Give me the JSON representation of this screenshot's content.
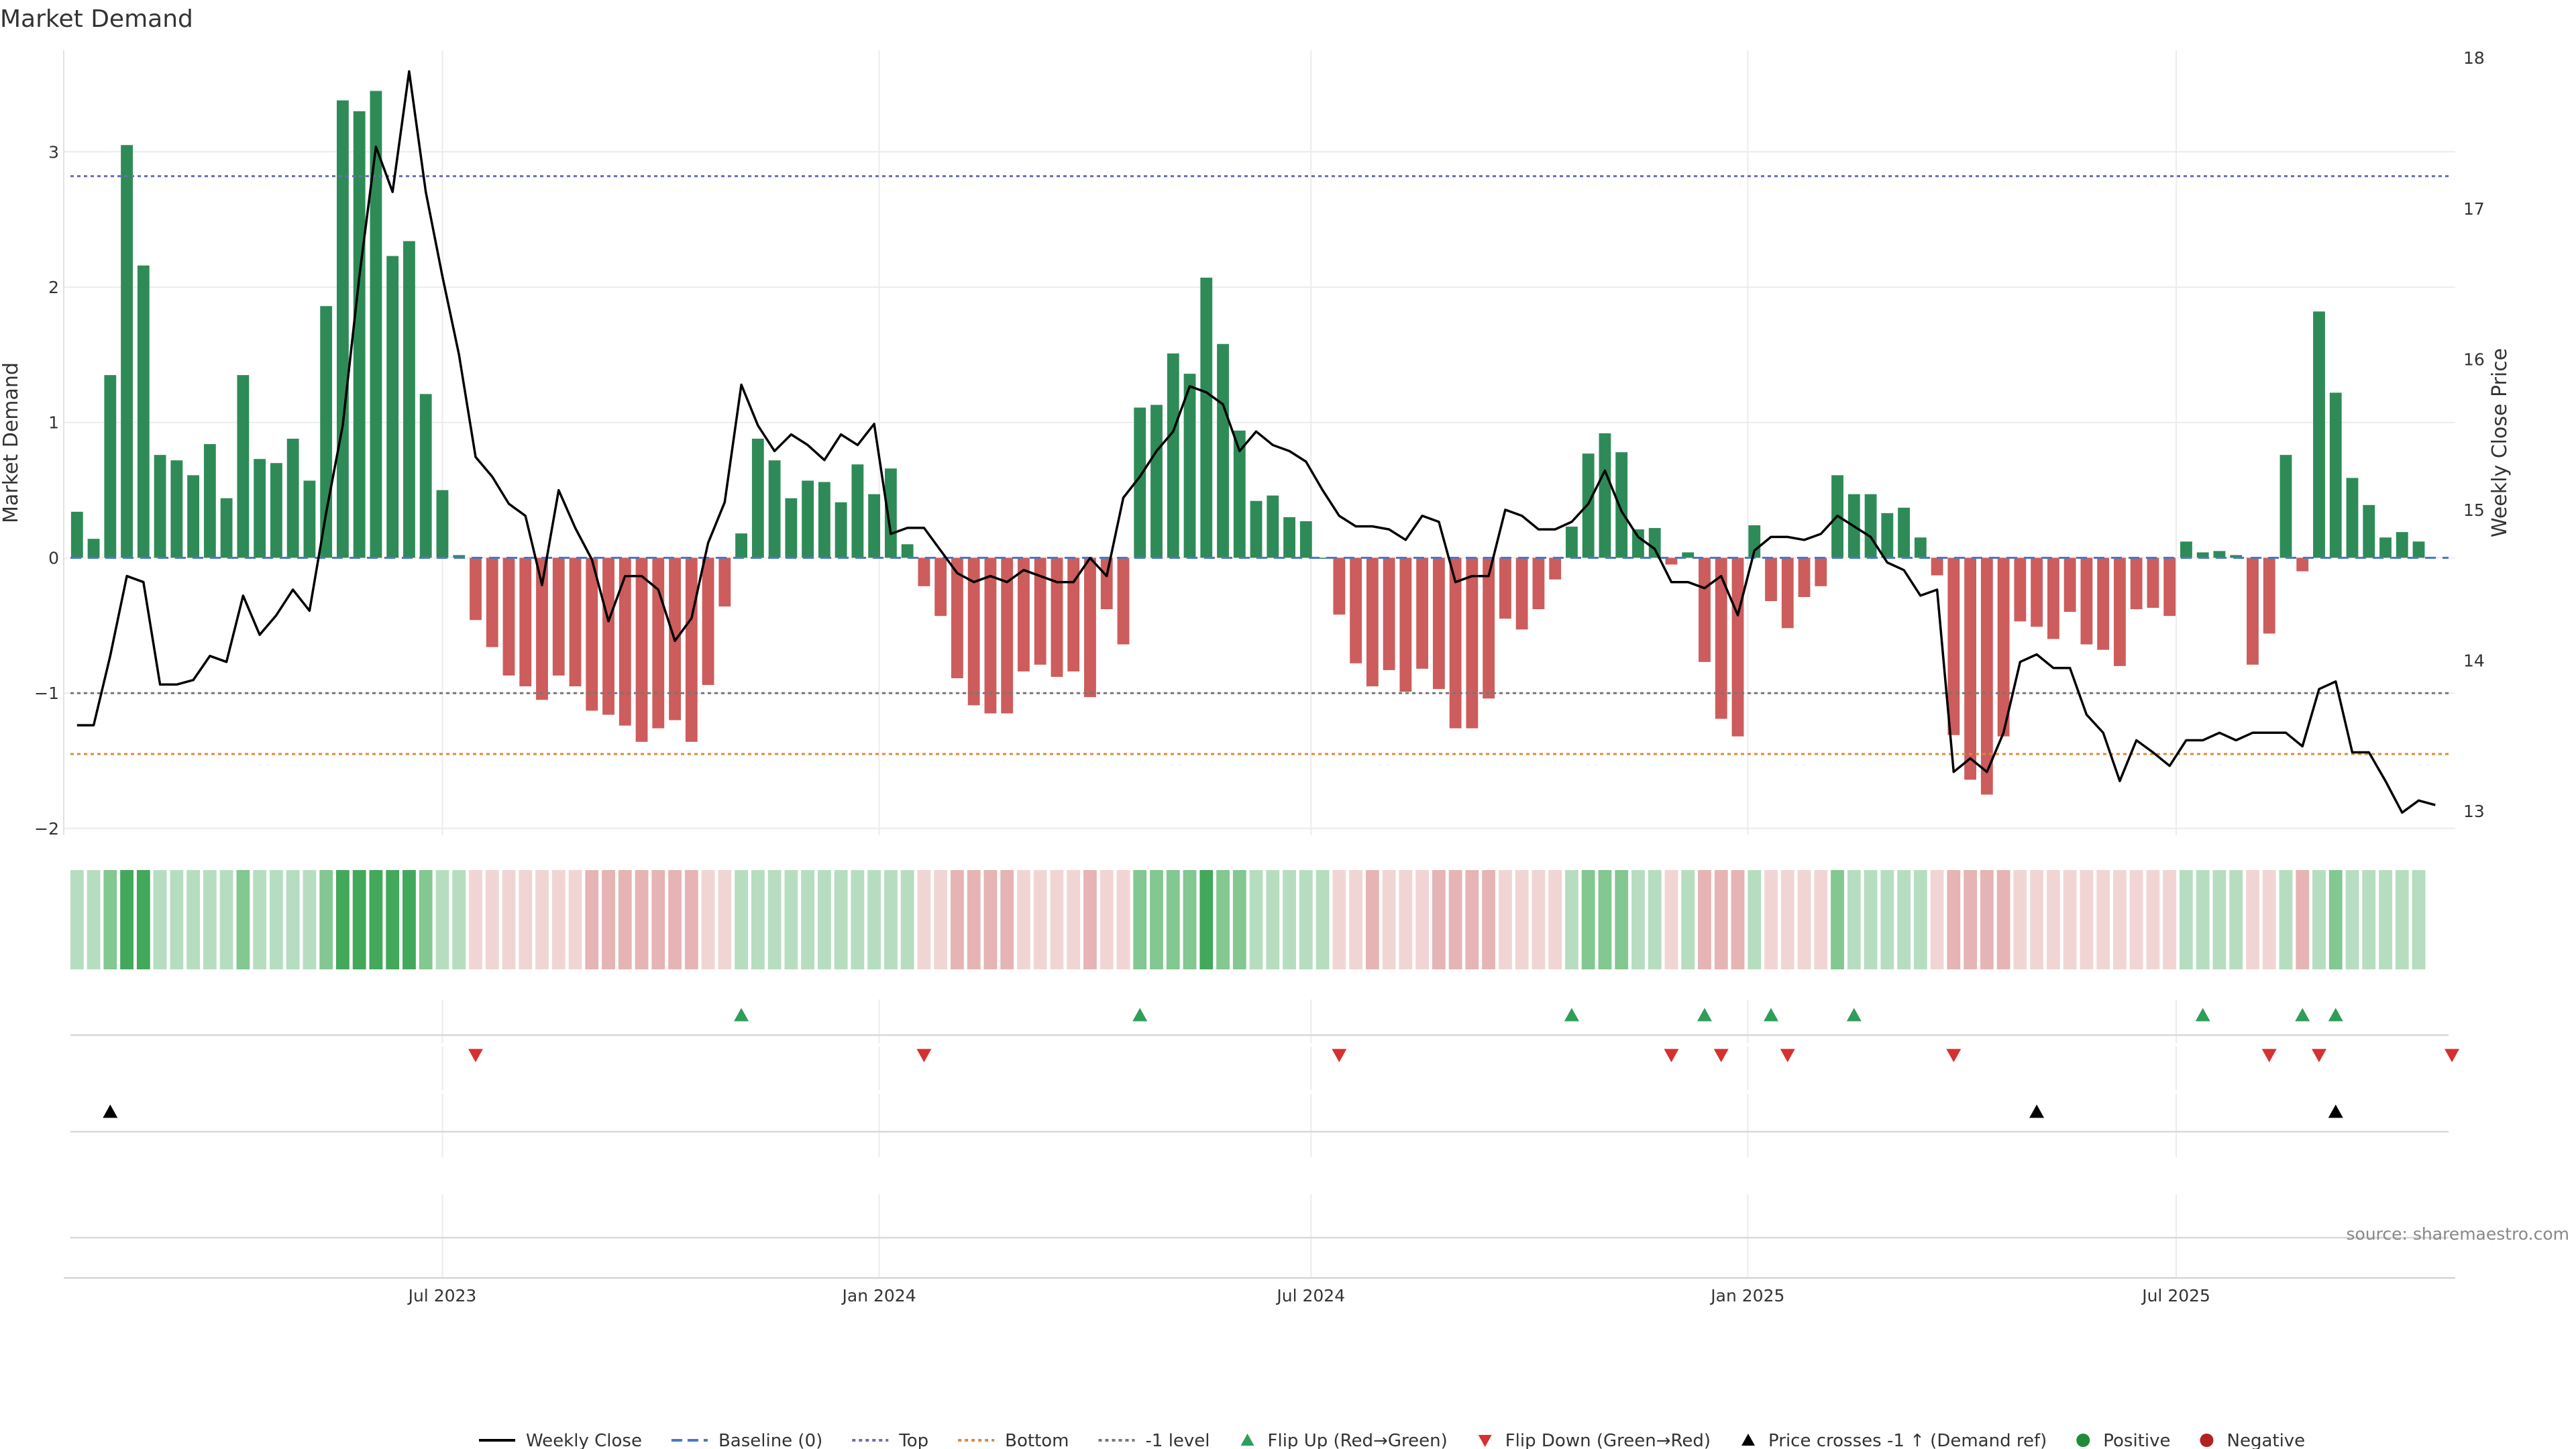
{
  "chart_data": {
    "type": "bar",
    "title": "Market Demand",
    "ylabel": "Market Demand",
    "y2label": "Weekly Close Price",
    "ylim": [
      -2.05,
      3.75
    ],
    "y2lim": [
      12.84,
      18.05
    ],
    "yticks": [
      -2,
      -1,
      0,
      1,
      2,
      3
    ],
    "ytick_labels": [
      "−2",
      "−1",
      "0",
      "1",
      "2",
      "3"
    ],
    "y2ticks": [
      13,
      14,
      15,
      16,
      17,
      18
    ],
    "xlim": [
      -0.8,
      143.2
    ],
    "xticks": [
      {
        "index": 22,
        "label": "Jul 2023"
      },
      {
        "index": 48.3,
        "label": "Jan 2024"
      },
      {
        "index": 74.3,
        "label": "Jul 2024"
      },
      {
        "index": 100.6,
        "label": "Jan 2025"
      },
      {
        "index": 126.4,
        "label": "Jul 2025"
      }
    ],
    "reference_lines": [
      {
        "name": "Baseline (0)",
        "value": 0,
        "color": "#4a78c4",
        "style": "dashed"
      },
      {
        "name": "Top",
        "value": 2.82,
        "color": "#6b6bbd",
        "style": "dotted"
      },
      {
        "name": "Bottom",
        "value": -1.45,
        "color": "#dd8a3a",
        "style": "dotted"
      },
      {
        "name": "-1 level",
        "value": -1,
        "color": "#777777",
        "style": "dotted"
      }
    ],
    "demand": [
      0.34,
      0.14,
      1.35,
      3.05,
      2.16,
      0.76,
      0.72,
      0.61,
      0.84,
      0.44,
      1.35,
      0.73,
      0.7,
      0.88,
      0.57,
      1.86,
      3.38,
      3.3,
      3.45,
      2.23,
      2.34,
      1.21,
      0.5,
      0.02,
      -0.46,
      -0.66,
      -0.87,
      -0.95,
      -1.05,
      -0.87,
      -0.95,
      -1.13,
      -1.16,
      -1.24,
      -1.36,
      -1.26,
      -1.2,
      -1.36,
      -0.94,
      -0.36,
      0.18,
      0.88,
      0.72,
      0.44,
      0.57,
      0.56,
      0.41,
      0.69,
      0.47,
      0.66,
      0.1,
      -0.21,
      -0.43,
      -0.89,
      -1.09,
      -1.15,
      -1.15,
      -0.84,
      -0.79,
      -0.88,
      -0.84,
      -1.03,
      -0.38,
      -0.64,
      1.11,
      1.13,
      1.51,
      1.36,
      2.07,
      1.58,
      0.94,
      0.42,
      0.46,
      0.3,
      0.27,
      0.0,
      -0.42,
      -0.78,
      -0.95,
      -0.83,
      -0.99,
      -0.82,
      -0.97,
      -1.26,
      -1.26,
      -1.04,
      -0.45,
      -0.53,
      -0.38,
      -0.16,
      0.23,
      0.77,
      0.92,
      0.78,
      0.21,
      0.22,
      -0.05,
      0.04,
      -0.77,
      -1.19,
      -1.32,
      0.24,
      -0.32,
      -0.52,
      -0.29,
      -0.21,
      0.61,
      0.47,
      0.47,
      0.33,
      0.37,
      0.15,
      -0.13,
      -1.31,
      -1.64,
      -1.75,
      -1.32,
      -0.47,
      -0.51,
      -0.6,
      -0.4,
      -0.64,
      -0.68,
      -0.8,
      -0.38,
      -0.37,
      -0.43,
      0.12,
      0.04,
      0.05,
      0.02,
      -0.79,
      -0.56,
      0.76,
      -0.1,
      1.82,
      1.22,
      0.59,
      0.39,
      0.15,
      0.19,
      0.12
    ],
    "price": [
      13.57,
      13.57,
      14.03,
      14.56,
      14.52,
      13.84,
      13.84,
      13.87,
      14.03,
      13.99,
      14.43,
      14.17,
      14.3,
      14.47,
      14.33,
      14.98,
      15.56,
      16.55,
      17.41,
      17.11,
      17.91,
      17.11,
      16.55,
      16.03,
      15.35,
      15.22,
      15.04,
      14.96,
      14.5,
      15.13,
      14.88,
      14.67,
      14.26,
      14.56,
      14.56,
      14.47,
      14.13,
      14.28,
      14.78,
      15.05,
      15.83,
      15.56,
      15.39,
      15.5,
      15.43,
      15.33,
      15.5,
      15.43,
      15.57,
      14.84,
      14.88,
      14.88,
      14.73,
      14.58,
      14.52,
      14.56,
      14.52,
      14.6,
      14.56,
      14.52,
      14.52,
      14.68,
      14.56,
      15.08,
      15.22,
      15.39,
      15.52,
      15.82,
      15.78,
      15.7,
      15.39,
      15.52,
      15.43,
      15.39,
      15.32,
      15.13,
      14.96,
      14.89,
      14.89,
      14.87,
      14.8,
      14.96,
      14.92,
      14.52,
      14.56,
      14.56,
      15.0,
      14.96,
      14.87,
      14.87,
      14.92,
      15.04,
      15.26,
      14.99,
      14.82,
      14.74,
      14.52,
      14.52,
      14.48,
      14.56,
      14.3,
      14.73,
      14.82,
      14.82,
      14.8,
      14.84,
      14.96,
      14.89,
      14.82,
      14.65,
      14.6,
      14.43,
      14.47,
      13.26,
      13.35,
      13.26,
      13.52,
      13.99,
      14.04,
      13.95,
      13.95,
      13.64,
      13.52,
      13.2,
      13.47,
      13.39,
      13.3,
      13.47,
      13.47,
      13.52,
      13.47,
      13.52,
      13.52,
      13.52,
      13.43,
      13.81,
      13.86,
      13.39,
      13.39,
      13.2,
      12.99,
      13.07,
      13.04
    ],
    "bands": {
      "positive": [
        "#b6ddc0",
        "#83c791",
        "#42a85a"
      ],
      "negative": [
        "#f1d5d5",
        "#e6b4b4",
        "#d89e9e"
      ],
      "levels": [
        1,
        1,
        2,
        3,
        3,
        1,
        1,
        1,
        1,
        1,
        2,
        1,
        1,
        1,
        1,
        2,
        3,
        3,
        3,
        3,
        3,
        2,
        1,
        1,
        1,
        1,
        1,
        1,
        1,
        1,
        1,
        2,
        2,
        2,
        2,
        2,
        2,
        2,
        1,
        1,
        1,
        1,
        1,
        1,
        1,
        1,
        1,
        1,
        1,
        1,
        1,
        1,
        1,
        2,
        2,
        2,
        2,
        1,
        1,
        1,
        1,
        2,
        1,
        1,
        2,
        2,
        2,
        2,
        3,
        2,
        2,
        1,
        1,
        1,
        1,
        1,
        1,
        1,
        2,
        1,
        1,
        1,
        2,
        2,
        2,
        2,
        1,
        1,
        1,
        1,
        1,
        2,
        2,
        2,
        1,
        1,
        1,
        1,
        2,
        2,
        2,
        1,
        1,
        1,
        1,
        1,
        2,
        1,
        1,
        1,
        1,
        1,
        1,
        2,
        2,
        2,
        2,
        1,
        1,
        1,
        1,
        1,
        1,
        1,
        1,
        1,
        1,
        1,
        1,
        1,
        1,
        1,
        1,
        1,
        2,
        1,
        2,
        1,
        1,
        1,
        1,
        1,
        1
      ]
    },
    "markers": {
      "flip_up": [
        40,
        64,
        90,
        98,
        102,
        107,
        128,
        134,
        136
      ],
      "flip_down": [
        24,
        51,
        76,
        96,
        99,
        103,
        113,
        132,
        135,
        143
      ],
      "price_cross_up": [
        2,
        118,
        136
      ]
    },
    "source": "source: sharemaestro.com",
    "legend": [
      {
        "label": "Weekly Close",
        "kind": "line",
        "color": "#000000"
      },
      {
        "label": "Baseline (0)",
        "kind": "dashed",
        "color": "#4a78c4"
      },
      {
        "label": "Top",
        "kind": "dotted",
        "color": "#6b6bbd"
      },
      {
        "label": "Bottom",
        "kind": "dotted",
        "color": "#dd8a3a"
      },
      {
        "label": "-1 level",
        "kind": "dotted",
        "color": "#777777"
      },
      {
        "label": "Flip Up (Red→Green)",
        "kind": "tri-up",
        "color": "#2e9e58"
      },
      {
        "label": "Flip Down (Green→Red)",
        "kind": "tri-down",
        "color": "#d63031"
      },
      {
        "label": "Price crosses -1 ↑ (Demand ref)",
        "kind": "tri-up",
        "color": "#000000"
      },
      {
        "label": "Positive",
        "kind": "dot",
        "color": "#228b3a"
      },
      {
        "label": "Negative",
        "kind": "dot",
        "color": "#b22222"
      }
    ],
    "colors": {
      "positive_bar": "#2e8b57",
      "negative_bar": "#cd5c5c",
      "price_line": "#000000"
    }
  }
}
